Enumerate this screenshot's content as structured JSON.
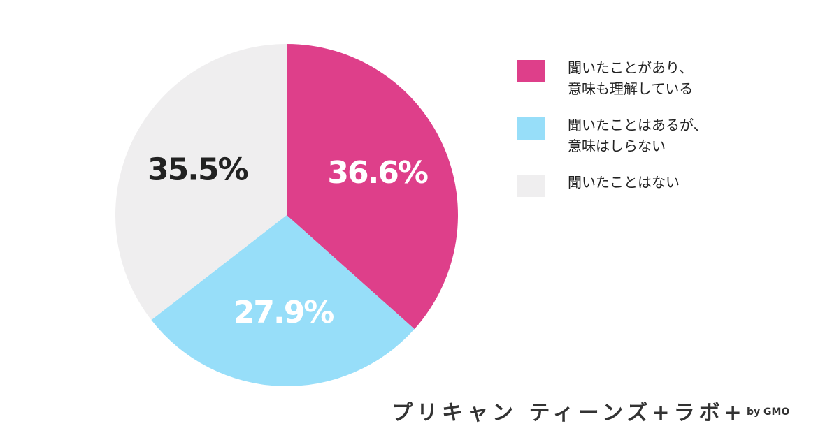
{
  "chart_data": {
    "type": "pie",
    "series": [
      {
        "name": "聞いたことがあり、\n意味も理解している",
        "color": "#de3f8a",
        "values": [
          36.6
        ],
        "value_labels": [
          "36.6%"
        ]
      },
      {
        "name": "聞いたことはあるが、\n意味はしらない",
        "color": "#97def9",
        "values": [
          27.9
        ],
        "value_labels": [
          "27.9%"
        ]
      },
      {
        "name": "聞いたことはない",
        "color": "#efeeef",
        "values": [
          35.5
        ],
        "value_labels": [
          "35.5%"
        ]
      }
    ]
  },
  "logo": "プリキャン ティーンズ+ラボ+",
  "logo_by": "by GMO"
}
